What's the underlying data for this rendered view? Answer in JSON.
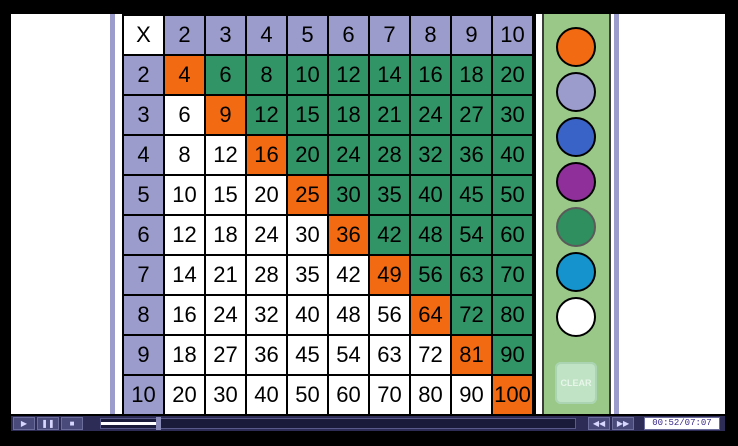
{
  "table": {
    "corner": "X",
    "col_headers": [
      "2",
      "3",
      "4",
      "5",
      "6",
      "7",
      "8",
      "9",
      "10"
    ],
    "row_headers": [
      "2",
      "3",
      "4",
      "5",
      "6",
      "7",
      "8",
      "9",
      "10"
    ],
    "rows": [
      [
        "4",
        "6",
        "8",
        "10",
        "12",
        "14",
        "16",
        "18",
        "20"
      ],
      [
        "6",
        "9",
        "12",
        "15",
        "18",
        "21",
        "24",
        "27",
        "30"
      ],
      [
        "8",
        "12",
        "16",
        "20",
        "24",
        "28",
        "32",
        "36",
        "40"
      ],
      [
        "10",
        "15",
        "20",
        "25",
        "30",
        "35",
        "40",
        "45",
        "50"
      ],
      [
        "12",
        "18",
        "24",
        "30",
        "36",
        "42",
        "48",
        "54",
        "60"
      ],
      [
        "14",
        "21",
        "28",
        "35",
        "42",
        "49",
        "56",
        "63",
        "70"
      ],
      [
        "16",
        "24",
        "32",
        "40",
        "48",
        "56",
        "64",
        "72",
        "80"
      ],
      [
        "18",
        "27",
        "36",
        "45",
        "54",
        "63",
        "72",
        "81",
        "90"
      ],
      [
        "20",
        "30",
        "40",
        "50",
        "60",
        "70",
        "80",
        "90",
        "100"
      ]
    ]
  },
  "palette": {
    "colors": [
      "#f26a12",
      "#9b9ccc",
      "#3a63c8",
      "#8e2f9a",
      "#2f8f5e",
      "#1493cc",
      "#ffffff"
    ],
    "clear_label": "CLEAR"
  },
  "cell_colors": {
    "square": "#f26a12",
    "upper": "#319466",
    "lower": "#ffffff",
    "header": "#9b9ccc"
  },
  "player": {
    "time": "00:52/07:07",
    "progress": 0.12
  }
}
